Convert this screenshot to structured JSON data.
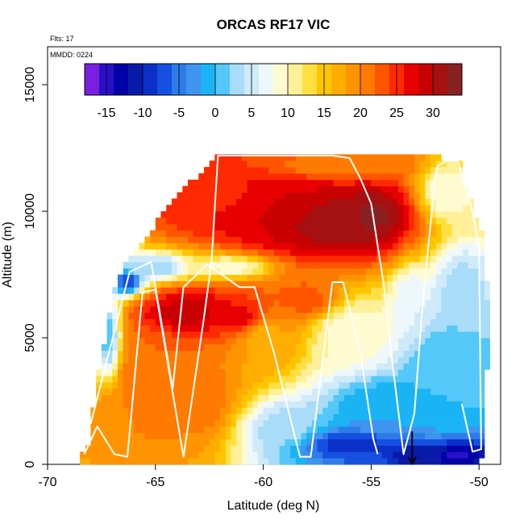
{
  "chart_data": {
    "type": "heatmap",
    "title": "ORCAS RF17 VIC",
    "xlabel": "Latitude (deg N)",
    "ylabel": "Altitude (m)",
    "xlim": [
      -70,
      -49
    ],
    "ylim": [
      0,
      16500
    ],
    "x_ticks": [
      -70,
      -65,
      -60,
      -55,
      -50
    ],
    "y_ticks": [
      0,
      5000,
      10000,
      15000
    ],
    "annotations": {
      "flights": "Flts: 17",
      "date": "MMDD: 0224"
    },
    "colorbar": {
      "range": [
        -18,
        34
      ],
      "step": 2,
      "tick_values": [
        -15,
        -10,
        -5,
        0,
        5,
        10,
        15,
        20,
        25,
        30
      ],
      "colors": [
        "#7a1fe0",
        "#2a10c8",
        "#0000a8",
        "#0a1aa8",
        "#0a30c8",
        "#1550e0",
        "#2e7ce8",
        "#3f94f0",
        "#1ab4f5",
        "#54c8f8",
        "#a9dcf8",
        "#cfeaf8",
        "#eef7fb",
        "#fffbd0",
        "#fff099",
        "#ffe040",
        "#ffc400",
        "#ffad00",
        "#ff9400",
        "#ff7a00",
        "#ff5500",
        "#ff2a00",
        "#e80000",
        "#c80000",
        "#a51010",
        "#882222"
      ]
    },
    "field_bounds": [
      {
        "alt": 0,
        "lat_min": -68.6,
        "lat_max": -49.9
      },
      {
        "alt": 1000,
        "lat_min": -68.0,
        "lat_max": -49.8
      },
      {
        "alt": 2000,
        "lat_min": -67.9,
        "lat_max": -49.7
      },
      {
        "alt": 3000,
        "lat_min": -67.7,
        "lat_max": -49.7
      },
      {
        "alt": 4000,
        "lat_min": -67.6,
        "lat_max": -49.6
      },
      {
        "alt": 5000,
        "lat_min": -67.3,
        "lat_max": -49.6
      },
      {
        "alt": 6000,
        "lat_min": -67.1,
        "lat_max": -49.6
      },
      {
        "alt": 7000,
        "lat_min": -66.9,
        "lat_max": -49.6
      },
      {
        "alt": 8000,
        "lat_min": -66.3,
        "lat_max": -49.7
      },
      {
        "alt": 9000,
        "lat_min": -65.4,
        "lat_max": -49.8
      },
      {
        "alt": 10000,
        "lat_min": -64.6,
        "lat_max": -50.2
      },
      {
        "alt": 11000,
        "lat_min": -63.6,
        "lat_max": -50.6
      },
      {
        "alt": 12000,
        "lat_min": -62.3,
        "lat_max": -50.9
      },
      {
        "alt": 12300,
        "lat_min": -62.1,
        "lat_max": -52.7
      }
    ],
    "field_features": [
      {
        "lat": -57.0,
        "alt": 9600,
        "value": 31,
        "lat_width": 3.2,
        "alt_width": 1400
      },
      {
        "lat": -55.0,
        "alt": 9800,
        "value": 33,
        "lat_width": 1.5,
        "alt_width": 1000
      },
      {
        "lat": -59.5,
        "alt": 10300,
        "value": 28,
        "lat_width": 3.0,
        "alt_width": 1600
      },
      {
        "lat": -62.0,
        "alt": 11000,
        "value": 24,
        "lat_width": 2.0,
        "alt_width": 1200
      },
      {
        "lat": -57.0,
        "alt": 11800,
        "value": 21,
        "lat_width": 4.0,
        "alt_width": 700
      },
      {
        "lat": -63.5,
        "alt": 6000,
        "value": 29,
        "lat_width": 2.4,
        "alt_width": 900
      },
      {
        "lat": -61.0,
        "alt": 5800,
        "value": 27,
        "lat_width": 1.8,
        "alt_width": 1000
      },
      {
        "lat": -65.0,
        "alt": 3500,
        "value": 22,
        "lat_width": 2.0,
        "alt_width": 2000
      },
      {
        "lat": -66.5,
        "alt": 2000,
        "value": 20,
        "lat_width": 1.5,
        "alt_width": 1500
      },
      {
        "lat": -63.0,
        "alt": 2500,
        "value": 21,
        "lat_width": 2.0,
        "alt_width": 1800
      },
      {
        "lat": -60.0,
        "alt": 5000,
        "value": 17,
        "lat_width": 1.8,
        "alt_width": 1500
      },
      {
        "lat": -58.0,
        "alt": 6500,
        "value": 23,
        "lat_width": 1.8,
        "alt_width": 900
      },
      {
        "lat": -65.0,
        "alt": 7800,
        "value": 2,
        "lat_width": 1.6,
        "alt_width": 500
      },
      {
        "lat": -66.3,
        "alt": 7200,
        "value": -8,
        "lat_width": 0.7,
        "alt_width": 500
      },
      {
        "lat": -67.2,
        "alt": 5000,
        "value": 1,
        "lat_width": 0.6,
        "alt_width": 1800
      },
      {
        "lat": -59.0,
        "alt": 1500,
        "value": 3,
        "lat_width": 2.0,
        "alt_width": 1000
      },
      {
        "lat": -56.0,
        "alt": 800,
        "value": -9,
        "lat_width": 2.5,
        "alt_width": 700
      },
      {
        "lat": -53.0,
        "alt": 400,
        "value": -12,
        "lat_width": 1.5,
        "alt_width": 500
      },
      {
        "lat": -51.0,
        "alt": 400,
        "value": -15,
        "lat_width": 1.2,
        "alt_width": 500
      },
      {
        "lat": -54.5,
        "alt": 2200,
        "value": -2,
        "lat_width": 2.5,
        "alt_width": 1300
      },
      {
        "lat": -51.5,
        "alt": 3500,
        "value": 0,
        "lat_width": 2.0,
        "alt_width": 2200
      },
      {
        "lat": -50.8,
        "alt": 7000,
        "value": 3,
        "lat_width": 1.2,
        "alt_width": 1500
      },
      {
        "lat": -56.0,
        "alt": 5200,
        "value": 9,
        "lat_width": 2.0,
        "alt_width": 1600
      },
      {
        "lat": -53.2,
        "alt": 6500,
        "value": 6,
        "lat_width": 0.8,
        "alt_width": 1200
      },
      {
        "lat": -51.5,
        "alt": 10800,
        "value": 8,
        "lat_width": 1.2,
        "alt_width": 1200
      },
      {
        "lat": -61.5,
        "alt": 7800,
        "value": 9,
        "lat_width": 2.0,
        "alt_width": 500
      }
    ],
    "flight_track": [
      [
        -68.3,
        400
      ],
      [
        -67.7,
        1500
      ],
      [
        -66.9,
        400
      ],
      [
        -66.3,
        300
      ],
      [
        -65.6,
        6800
      ],
      [
        -65.0,
        6900
      ],
      [
        -63.7,
        300
      ],
      [
        -62.8,
        5500
      ],
      [
        -62.4,
        8000
      ],
      [
        -62.1,
        12200
      ],
      [
        -57.3,
        12200
      ],
      [
        -56.8,
        12200
      ],
      [
        -56.0,
        12100
      ],
      [
        -55.5,
        11300
      ],
      [
        -55.0,
        10300
      ],
      [
        -54.4,
        7000
      ],
      [
        -54.0,
        3900
      ],
      [
        -53.5,
        400
      ],
      [
        -53.0,
        2000
      ],
      [
        -52.6,
        6500
      ],
      [
        -52.0,
        11600
      ],
      [
        -51.9,
        11800
      ],
      [
        -51.5,
        12000
      ],
      [
        -51.0,
        12000
      ],
      [
        -50.3,
        10000
      ],
      [
        -50.0,
        8500
      ],
      [
        -49.9,
        600
      ],
      [
        -50.3,
        500
      ],
      [
        -50.8,
        2400
      ]
    ],
    "flight_track_2": [
      [
        -68.0,
        1600
      ],
      [
        -66.2,
        7600
      ],
      [
        -65.2,
        8000
      ],
      [
        -64.2,
        3000
      ],
      [
        -63.7,
        7000
      ],
      [
        -62.6,
        7900
      ],
      [
        -61.1,
        7000
      ],
      [
        -60.4,
        7000
      ],
      [
        -59.5,
        4400
      ],
      [
        -58.3,
        300
      ],
      [
        -57.8,
        300
      ],
      [
        -56.8,
        7200
      ],
      [
        -56.3,
        7200
      ],
      [
        -55.5,
        4400
      ],
      [
        -54.9,
        1000
      ],
      [
        -54.7,
        400
      ]
    ],
    "marker": {
      "lat": -53.1,
      "alt": 600
    }
  }
}
